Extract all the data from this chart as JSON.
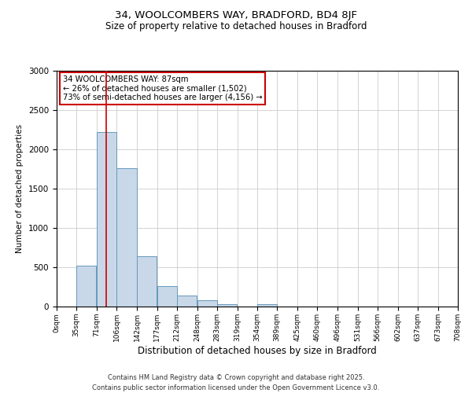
{
  "title": "34, WOOLCOMBERS WAY, BRADFORD, BD4 8JF",
  "subtitle": "Size of property relative to detached houses in Bradford",
  "xlabel": "Distribution of detached houses by size in Bradford",
  "ylabel": "Number of detached properties",
  "bar_labels": [
    "0sqm",
    "35sqm",
    "71sqm",
    "106sqm",
    "142sqm",
    "177sqm",
    "212sqm",
    "248sqm",
    "283sqm",
    "319sqm",
    "354sqm",
    "389sqm",
    "425sqm",
    "460sqm",
    "496sqm",
    "531sqm",
    "566sqm",
    "602sqm",
    "637sqm",
    "673sqm",
    "708sqm"
  ],
  "bar_values": [
    0,
    520,
    2220,
    1760,
    640,
    260,
    140,
    80,
    30,
    0,
    30,
    0,
    0,
    0,
    0,
    0,
    0,
    0,
    0,
    0,
    0
  ],
  "bar_color": "#c8d8e8",
  "bar_edge_color": "#6699bb",
  "property_line_x": 87,
  "property_line_color": "#cc0000",
  "ylim": [
    0,
    3000
  ],
  "annotation_title": "34 WOOLCOMBERS WAY: 87sqm",
  "annotation_line1": "← 26% of detached houses are smaller (1,502)",
  "annotation_line2": "73% of semi-detached houses are larger (4,156) →",
  "annotation_box_color": "#cc0000",
  "footer_line1": "Contains HM Land Registry data © Crown copyright and database right 2025.",
  "footer_line2": "Contains public sector information licensed under the Open Government Licence v3.0.",
  "background_color": "#ffffff",
  "grid_color": "#cccccc",
  "bin_edges": [
    0,
    35,
    71,
    106,
    142,
    177,
    212,
    248,
    283,
    319,
    354,
    389,
    425,
    460,
    496,
    531,
    566,
    602,
    637,
    673,
    708
  ]
}
